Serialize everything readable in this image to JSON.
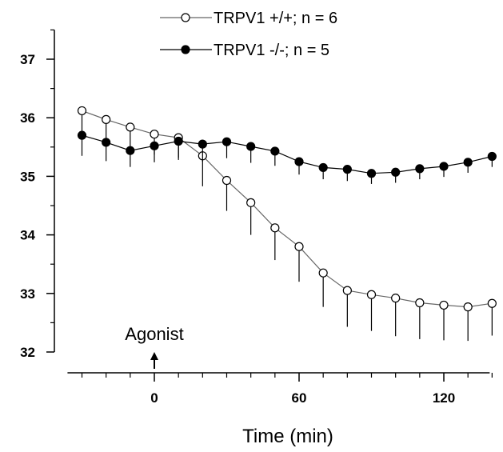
{
  "chart_data": {
    "type": "line",
    "title": "",
    "xlabel": "Time (min)",
    "ylabel": "",
    "xlim": [
      -35,
      140
    ],
    "ylim": [
      32,
      37.5
    ],
    "x_ticks": [
      0,
      60,
      120
    ],
    "x_tick_labels": [
      "0",
      "60",
      "120"
    ],
    "y_ticks": [
      32,
      33,
      34,
      35,
      36,
      37
    ],
    "y_tick_labels": [
      "32",
      "33",
      "34",
      "35",
      "36",
      "37"
    ],
    "grid": false,
    "legend_position": "top-center",
    "x": [
      -30,
      -20,
      -10,
      0,
      10,
      20,
      30,
      40,
      50,
      60,
      70,
      80,
      90,
      100,
      110,
      120,
      130,
      140
    ],
    "series": [
      {
        "name": "TRPV1 +/+; n = 6",
        "marker": "open-circle",
        "values": [
          36.12,
          35.97,
          35.84,
          35.72,
          35.66,
          35.35,
          34.93,
          34.55,
          34.12,
          33.8,
          33.35,
          33.05,
          32.98,
          32.92,
          32.84,
          32.8,
          32.77,
          32.83
        ],
        "errors": [
          0.42,
          0.38,
          0.35,
          0.35,
          0.38,
          0.52,
          0.52,
          0.55,
          0.55,
          0.6,
          0.58,
          0.62,
          0.62,
          0.65,
          0.62,
          0.6,
          0.58,
          0.55
        ]
      },
      {
        "name": "TRPV1 -/-; n = 5",
        "marker": "filled-circle",
        "values": [
          35.7,
          35.58,
          35.44,
          35.52,
          35.6,
          35.55,
          35.59,
          35.51,
          35.43,
          35.25,
          35.15,
          35.12,
          35.05,
          35.07,
          35.13,
          35.17,
          35.24,
          35.34
        ],
        "errors": [
          0.35,
          0.32,
          0.28,
          0.28,
          0.28,
          0.3,
          0.28,
          0.28,
          0.25,
          0.22,
          0.2,
          0.2,
          0.18,
          0.18,
          0.18,
          0.18,
          0.18,
          0.18
        ]
      }
    ],
    "annotations": [
      {
        "text": "Agonist",
        "x": 0,
        "y": 32.4,
        "arrow": true
      }
    ]
  }
}
